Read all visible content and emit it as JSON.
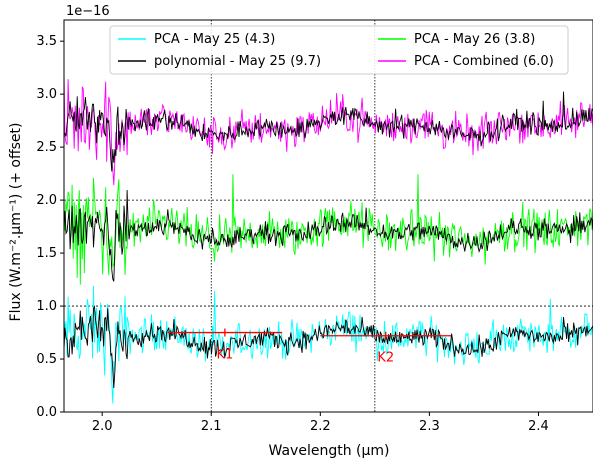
{
  "chart_data": {
    "type": "line",
    "offset_label": "1e−16",
    "xlabel": "Wavelength (μm)",
    "ylabel": "Flux (W.m⁻².μm⁻¹) (+ offset)",
    "xlim": [
      1.965,
      2.45
    ],
    "ylim": [
      0.0,
      3.7
    ],
    "x_ticks": [
      2.0,
      2.1,
      2.2,
      2.3,
      2.4
    ],
    "x_tick_labels": [
      "2.0",
      "2.1",
      "2.2",
      "2.3",
      "2.4"
    ],
    "y_ticks": [
      0.0,
      0.5,
      1.0,
      1.5,
      2.0,
      2.5,
      3.0,
      3.5
    ],
    "y_tick_labels": [
      "0.0",
      "0.5",
      "1.0",
      "1.5",
      "2.0",
      "2.5",
      "3.0",
      "3.5"
    ],
    "hlines": [
      1.0,
      2.0
    ],
    "vlines": [
      2.1,
      2.25
    ],
    "legend_placement": "top-center",
    "series": [
      {
        "name": "PCA - May 25 (4.3)",
        "color": "#00ffff",
        "level": 0.7,
        "noise": 0.14,
        "legend_order": 0
      },
      {
        "name": "PCA - May 26 (3.8)",
        "color": "#00ff00",
        "level": 1.7,
        "noise": 0.17,
        "legend_order": 2
      },
      {
        "name": "PCA - Combined  (6.0)",
        "color": "#ff00ff",
        "level": 2.7,
        "noise": 0.15,
        "legend_order": 3
      },
      {
        "name": "polynomial - May 25 (9.7)",
        "color": "#000000",
        "levels": [
          0.7,
          1.7,
          2.7
        ],
        "noise": 0.08,
        "legend_order": 1
      }
    ],
    "bands": [
      {
        "label": "K1",
        "x_range": [
          2.06,
          2.165
        ],
        "y": 0.75,
        "color": "#ff0000"
      },
      {
        "label": "K2",
        "x_range": [
          2.2,
          2.32
        ],
        "y": 0.72,
        "color": "#ff0000"
      }
    ]
  }
}
